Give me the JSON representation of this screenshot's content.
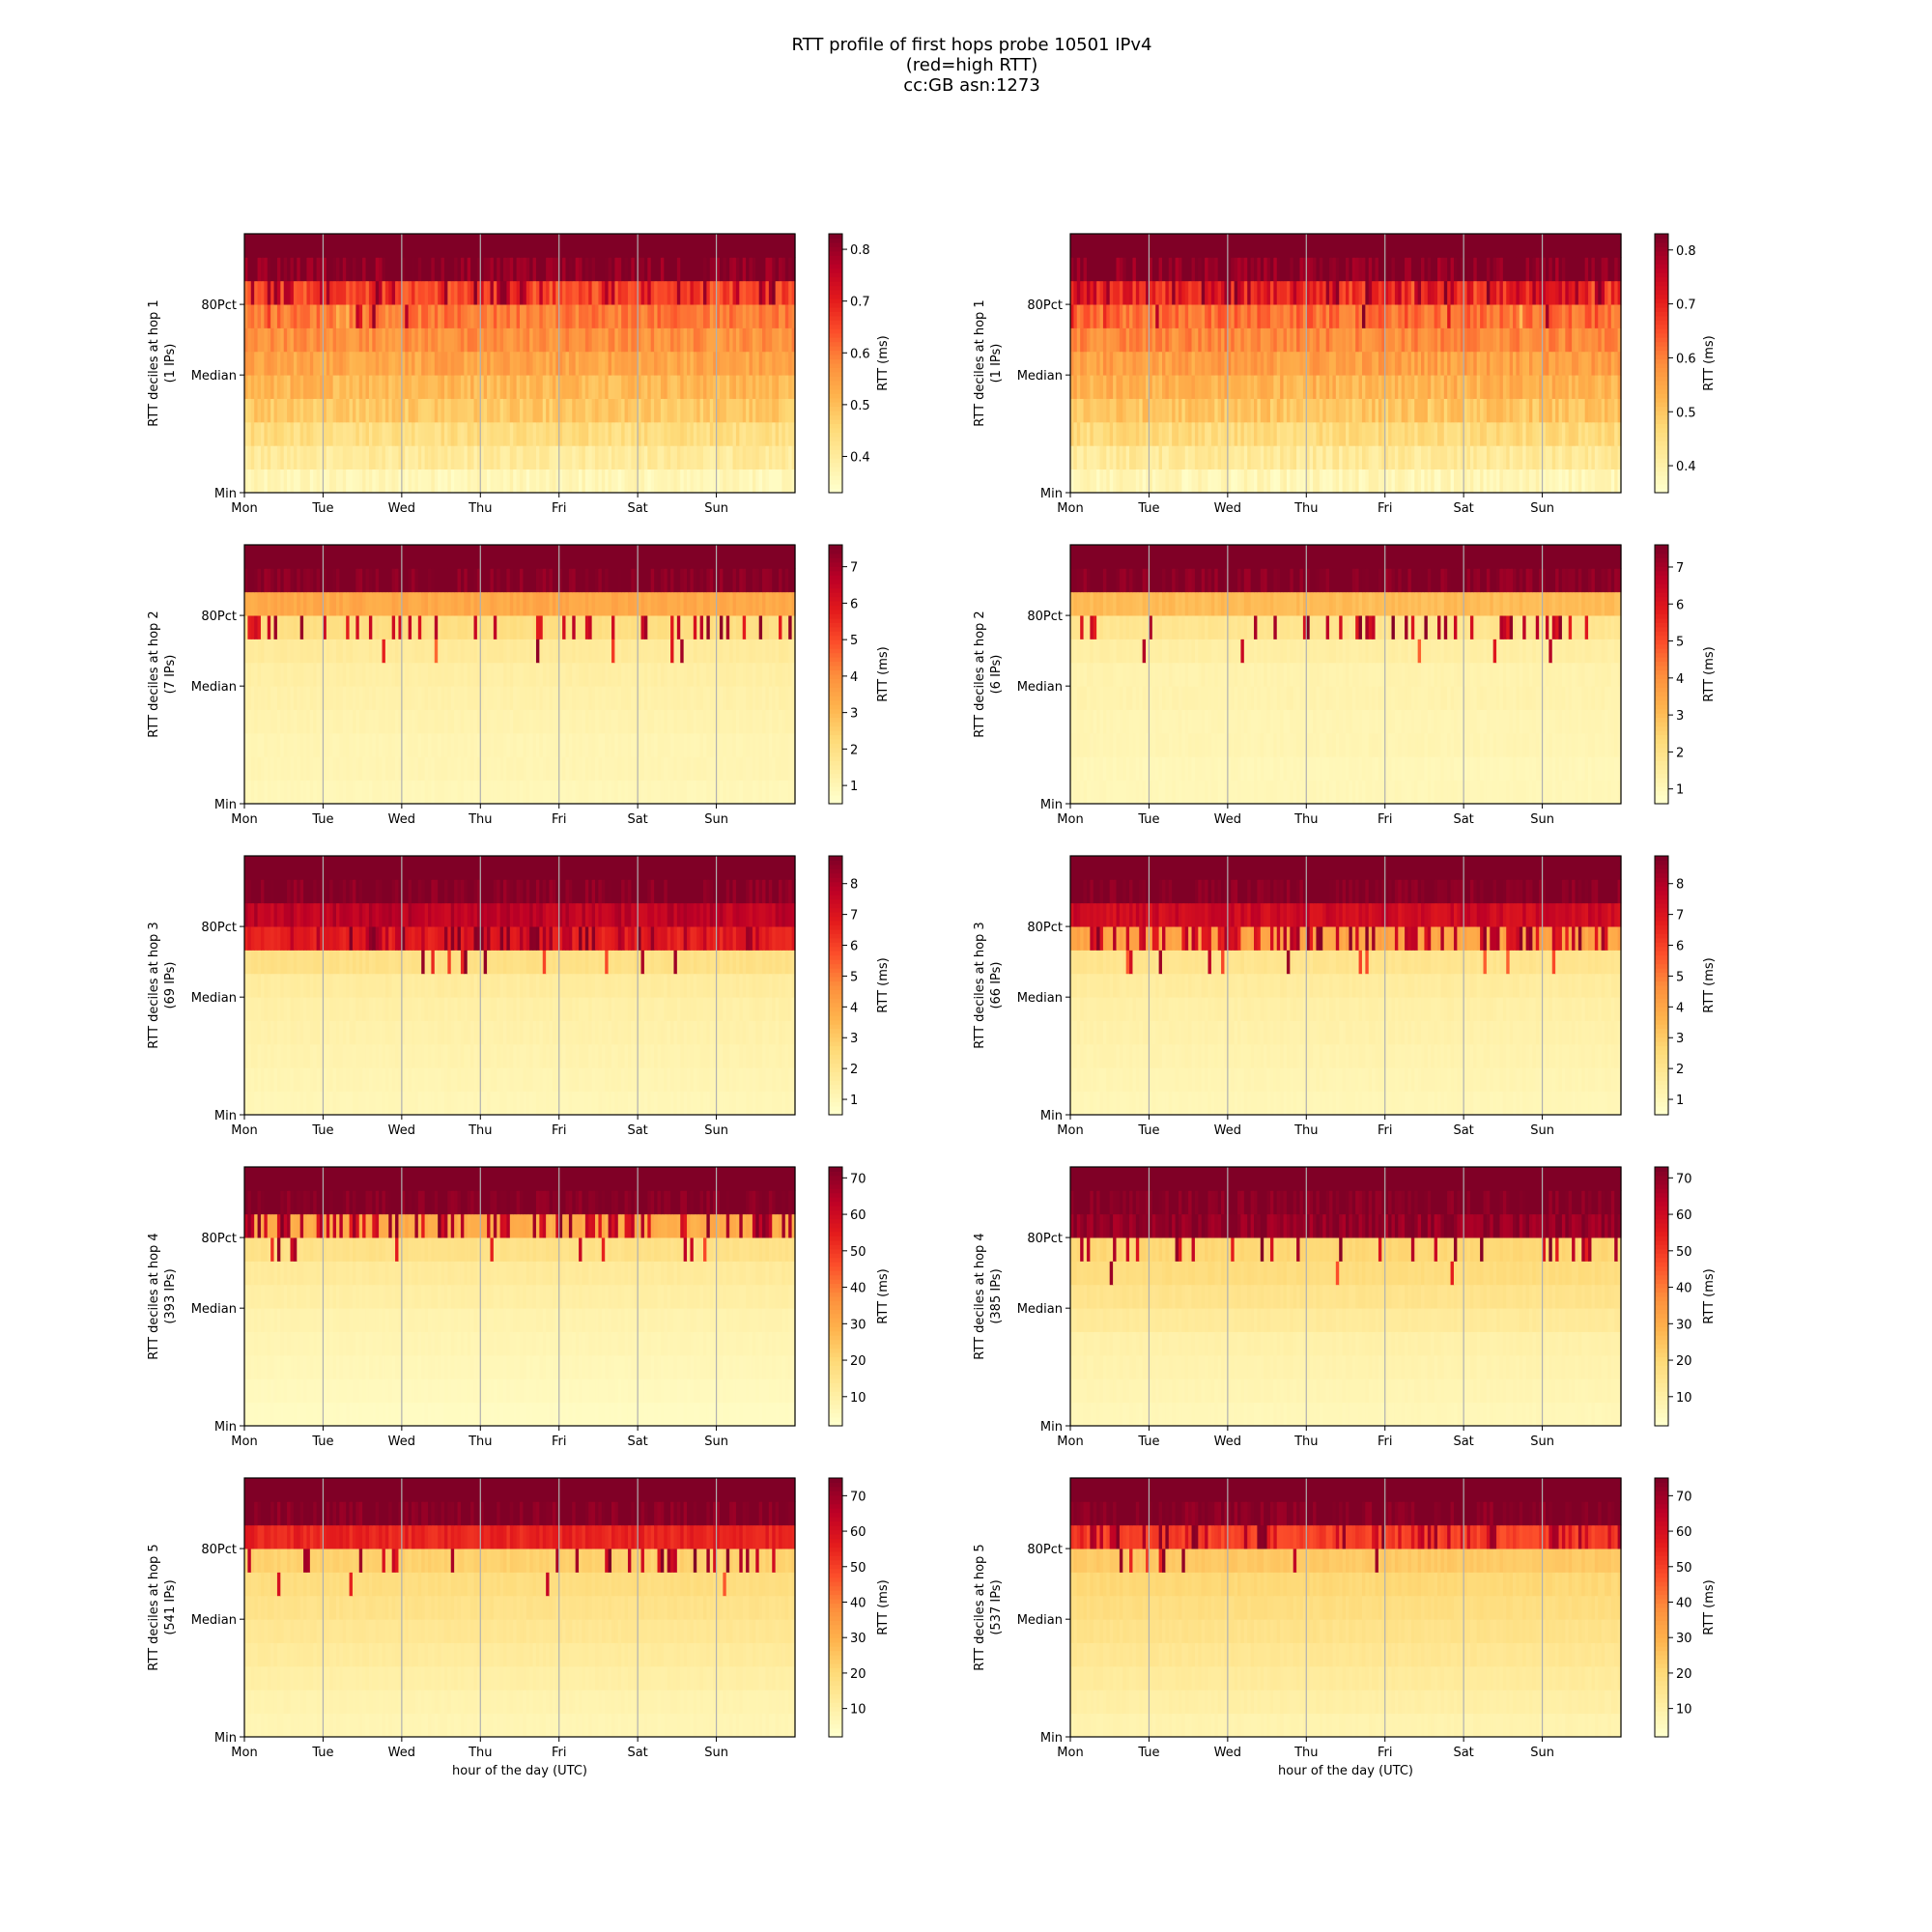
{
  "title_lines": [
    "RTT profile of first hops probe 10501 IPv4",
    "(red=high RTT)",
    "cc:GB asn:1273"
  ],
  "chart_data": {
    "type": "heatmap",
    "colormap": "YlOrRd",
    "x_ticks": [
      "Mon",
      "Tue",
      "Wed",
      "Thu",
      "Fri",
      "Sat",
      "Sun"
    ],
    "y_ticks": [
      "Min",
      "Median",
      "80Pct"
    ],
    "x_label": "hour of the day (UTC)",
    "colorbar_label": "RTT (ms)",
    "panels": [
      {
        "hop": 1,
        "ylabel": "RTT deciles at hop 1",
        "ips": "(1 IPs)",
        "cbar_ticks": [
          "0.4",
          "0.5",
          "0.6",
          "0.7",
          "0.8"
        ],
        "vmin": 0.33,
        "vmax": 0.83,
        "deciles": [
          0.36,
          0.4,
          0.44,
          0.48,
          0.51,
          0.54,
          0.57,
          0.6,
          0.65,
          0.83
        ],
        "spike_band": 8,
        "spike_rate": 0.35
      },
      {
        "hop": 1,
        "ylabel": "RTT deciles at hop 1",
        "ips": "(1 IPs)",
        "cbar_ticks": [
          "0.4",
          "0.5",
          "0.6",
          "0.7",
          "0.8"
        ],
        "vmin": 0.35,
        "vmax": 0.83,
        "deciles": [
          0.38,
          0.42,
          0.46,
          0.5,
          0.53,
          0.56,
          0.59,
          0.62,
          0.7,
          0.83
        ],
        "spike_band": 8,
        "spike_rate": 0.55
      },
      {
        "hop": 2,
        "ylabel": "RTT deciles at hop 2",
        "ips": "(7 IPs)",
        "cbar_ticks": [
          "1",
          "2",
          "3",
          "4",
          "5",
          "6",
          "7"
        ],
        "vmin": 0.5,
        "vmax": 7.6,
        "deciles": [
          0.9,
          1.0,
          1.0,
          1.1,
          1.2,
          1.3,
          1.5,
          2.0,
          3.4,
          7.6
        ],
        "spike_band": 7,
        "spike_rate": 0.25
      },
      {
        "hop": 2,
        "ylabel": "RTT deciles at hop 2",
        "ips": "(6 IPs)",
        "cbar_ticks": [
          "1",
          "2",
          "3",
          "4",
          "5",
          "6",
          "7"
        ],
        "vmin": 0.6,
        "vmax": 7.6,
        "deciles": [
          1.0,
          1.0,
          1.1,
          1.1,
          1.2,
          1.2,
          1.4,
          1.8,
          3.0,
          7.6
        ],
        "spike_band": 7,
        "spike_rate": 0.2
      },
      {
        "hop": 3,
        "ylabel": "RTT deciles at hop 3",
        "ips": "(69 IPs)",
        "cbar_ticks": [
          "1",
          "2",
          "3",
          "4",
          "5",
          "6",
          "7",
          "8"
        ],
        "vmin": 0.5,
        "vmax": 8.9,
        "deciles": [
          1.0,
          1.1,
          1.2,
          1.3,
          1.4,
          1.6,
          2.2,
          6.8,
          7.8,
          8.9
        ],
        "spike_band": 7,
        "spike_rate": 0.4
      },
      {
        "hop": 3,
        "ylabel": "RTT deciles at hop 3",
        "ips": "(66 IPs)",
        "cbar_ticks": [
          "1",
          "2",
          "3",
          "4",
          "5",
          "6",
          "7",
          "8"
        ],
        "vmin": 0.5,
        "vmax": 8.9,
        "deciles": [
          1.0,
          1.1,
          1.2,
          1.3,
          1.4,
          1.6,
          2.0,
          4.0,
          7.4,
          8.9
        ],
        "spike_band": 7,
        "spike_rate": 0.45
      },
      {
        "hop": 4,
        "ylabel": "RTT deciles at hop 4",
        "ips": "(393 IPs)",
        "cbar_ticks": [
          "10",
          "20",
          "30",
          "40",
          "50",
          "60",
          "70"
        ],
        "vmin": 2,
        "vmax": 73,
        "deciles": [
          4,
          5,
          6,
          7,
          8,
          10,
          12,
          16,
          30,
          73
        ],
        "spike_band": 8,
        "spike_rate": 0.3
      },
      {
        "hop": 4,
        "ylabel": "RTT deciles at hop 4",
        "ips": "(385 IPs)",
        "cbar_ticks": [
          "10",
          "20",
          "30",
          "40",
          "50",
          "60",
          "70"
        ],
        "vmin": 2,
        "vmax": 73,
        "deciles": [
          6,
          7,
          8,
          9,
          12,
          15,
          18,
          20,
          70,
          73
        ],
        "spike_band": 7,
        "spike_rate": 0.15
      },
      {
        "hop": 5,
        "ylabel": "RTT deciles at hop 5",
        "ips": "(541 IPs)",
        "cbar_ticks": [
          "10",
          "20",
          "30",
          "40",
          "50",
          "60",
          "70"
        ],
        "vmin": 2,
        "vmax": 75,
        "deciles": [
          7,
          8,
          10,
          12,
          14,
          16,
          18,
          22,
          55,
          75
        ],
        "spike_band": 7,
        "spike_rate": 0.2
      },
      {
        "hop": 5,
        "ylabel": "RTT deciles at hop 5",
        "ips": "(537 IPs)",
        "cbar_ticks": [
          "10",
          "20",
          "30",
          "40",
          "50",
          "60",
          "70"
        ],
        "vmin": 2,
        "vmax": 75,
        "deciles": [
          8,
          10,
          12,
          14,
          16,
          18,
          20,
          24,
          50,
          75
        ],
        "spike_band": 8,
        "spike_rate": 0.3
      }
    ]
  }
}
